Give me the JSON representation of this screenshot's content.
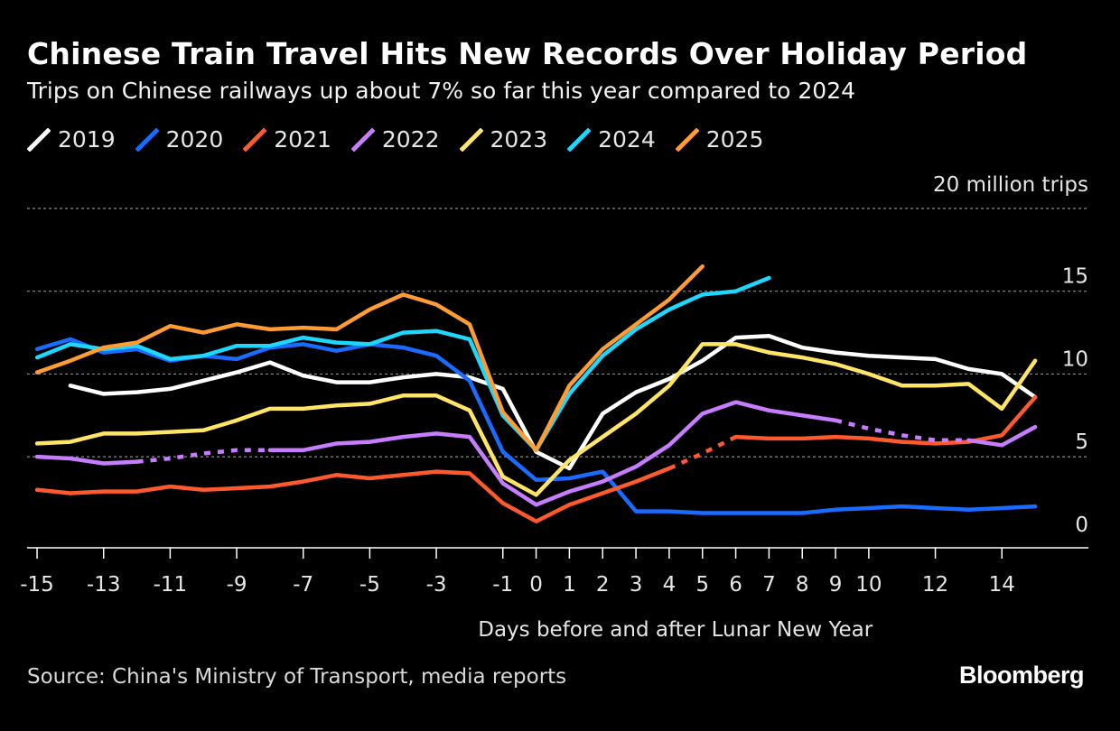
{
  "brand": "Bloomberg",
  "source": "Source: China's Ministry of Transport, media reports",
  "chart_data": {
    "type": "line",
    "title": "Chinese Train Travel Hits New Records Over Holiday Period",
    "subtitle": "Trips on Chinese railways up about 7% so far this year compared to 2024",
    "xlabel": "Days before and after Lunar New Year",
    "ylabel": "million trips",
    "y_unit_label": "20 million trips",
    "ylim": [
      -0.5,
      20
    ],
    "xlim": [
      -15.3,
      16.6
    ],
    "y_ticks": [
      0,
      5,
      10,
      15
    ],
    "y_tick_labels": [
      "0",
      "5",
      "10",
      "15"
    ],
    "x_ticks": [
      -15,
      -13,
      -11,
      -9,
      -7,
      -5,
      -3,
      -1,
      0,
      1,
      2,
      3,
      4,
      5,
      6,
      7,
      8,
      9,
      10,
      12,
      14
    ],
    "x_tick_labels": [
      "-15",
      "-13",
      "-11",
      "-9",
      "-7",
      "-5",
      "-3",
      "-1",
      "0",
      "1",
      "2",
      "3",
      "4",
      "5",
      "6",
      "7",
      "8",
      "9",
      "10",
      "12",
      "14"
    ],
    "series": [
      {
        "name": "2019",
        "color": "#ffffff",
        "points": [
          [
            -14,
            9.3
          ],
          [
            -13,
            8.8
          ],
          [
            -12,
            8.9
          ],
          [
            -11,
            9.1
          ],
          [
            -10,
            9.6
          ],
          [
            -9,
            10.1
          ],
          [
            -8,
            10.7
          ],
          [
            -7,
            9.9
          ],
          [
            -6,
            9.5
          ],
          [
            -5,
            9.5
          ],
          [
            -4,
            9.8
          ],
          [
            -3,
            10.0
          ],
          [
            -2,
            9.8
          ],
          [
            -1,
            9.1
          ],
          [
            0,
            5.3
          ],
          [
            1,
            4.3
          ],
          [
            2,
            7.6
          ],
          [
            3,
            8.9
          ],
          [
            4,
            9.7
          ],
          [
            5,
            10.8
          ],
          [
            6,
            12.2
          ],
          [
            7,
            12.3
          ],
          [
            8,
            11.6
          ],
          [
            9,
            11.3
          ],
          [
            10,
            11.1
          ],
          [
            11,
            11.0
          ],
          [
            12,
            10.9
          ],
          [
            13,
            10.3
          ],
          [
            14,
            10.0
          ],
          [
            15,
            8.6
          ]
        ]
      },
      {
        "name": "2020",
        "color": "#1a6bff",
        "points": [
          [
            -15,
            11.5
          ],
          [
            -14,
            12.1
          ],
          [
            -13,
            11.3
          ],
          [
            -12,
            11.5
          ],
          [
            -11,
            10.8
          ],
          [
            -10,
            11.1
          ],
          [
            -9,
            10.9
          ],
          [
            -8,
            11.6
          ],
          [
            -7,
            11.8
          ],
          [
            -6,
            11.4
          ],
          [
            -5,
            11.8
          ],
          [
            -4,
            11.6
          ],
          [
            -3,
            11.1
          ],
          [
            -2,
            9.6
          ],
          [
            -1,
            5.3
          ],
          [
            0,
            3.6
          ],
          [
            1,
            3.7
          ],
          [
            2,
            4.1
          ],
          [
            3,
            1.7
          ],
          [
            4,
            1.7
          ],
          [
            5,
            1.6
          ],
          [
            6,
            1.6
          ],
          [
            7,
            1.6
          ],
          [
            8,
            1.6
          ],
          [
            9,
            1.8
          ],
          [
            10,
            1.9
          ],
          [
            11,
            2.0
          ],
          [
            12,
            1.9
          ],
          [
            13,
            1.8
          ],
          [
            14,
            1.9
          ],
          [
            15,
            2.0
          ]
        ]
      },
      {
        "name": "2021",
        "color": "#ff5a2e",
        "points": [
          [
            -15,
            3.0
          ],
          [
            -14,
            2.8
          ],
          [
            -13,
            2.9
          ],
          [
            -12,
            2.9
          ],
          [
            -11,
            3.2
          ],
          [
            -10,
            3.0
          ],
          [
            -9,
            3.1
          ],
          [
            -8,
            3.2
          ],
          [
            -7,
            3.5
          ],
          [
            -6,
            3.9
          ],
          [
            -5,
            3.7
          ],
          [
            -4,
            3.9
          ],
          [
            -3,
            4.1
          ],
          [
            -2,
            4.0
          ],
          [
            -1,
            2.2
          ],
          [
            0,
            1.1
          ],
          [
            1,
            2.1
          ],
          [
            2,
            2.8
          ],
          [
            3,
            3.5
          ],
          [
            4,
            4.3
          ],
          [
            5,
            5.2,
            "d"
          ],
          [
            6,
            6.2
          ],
          [
            7,
            6.1
          ],
          [
            8,
            6.1
          ],
          [
            9,
            6.2
          ],
          [
            10,
            6.1
          ],
          [
            11,
            5.9
          ],
          [
            12,
            5.8
          ],
          [
            13,
            5.9
          ],
          [
            14,
            6.3
          ],
          [
            15,
            8.6
          ]
        ]
      },
      {
        "name": "2022",
        "color": "#c77dff",
        "points": [
          [
            -15,
            5.0
          ],
          [
            -14,
            4.9
          ],
          [
            -13,
            4.6
          ],
          [
            -12,
            4.7
          ],
          [
            -11,
            4.9,
            "d"
          ],
          [
            -10,
            5.2,
            "d"
          ],
          [
            -9,
            5.4,
            "d"
          ],
          [
            -8,
            5.4
          ],
          [
            -7,
            5.4
          ],
          [
            -6,
            5.8
          ],
          [
            -5,
            5.9
          ],
          [
            -4,
            6.2
          ],
          [
            -3,
            6.4
          ],
          [
            -2,
            6.2
          ],
          [
            -1,
            3.4
          ],
          [
            0,
            2.1
          ],
          [
            1,
            2.9
          ],
          [
            2,
            3.5
          ],
          [
            3,
            4.4
          ],
          [
            4,
            5.7
          ],
          [
            5,
            7.6
          ],
          [
            6,
            8.3
          ],
          [
            7,
            7.8
          ],
          [
            8,
            7.5
          ],
          [
            9,
            7.2
          ],
          [
            10,
            6.7,
            "d"
          ],
          [
            11,
            6.3,
            "d"
          ],
          [
            12,
            6.0,
            "d"
          ],
          [
            13,
            6.0
          ],
          [
            14,
            5.7
          ],
          [
            15,
            6.8
          ]
        ]
      },
      {
        "name": "2023",
        "color": "#ffe566",
        "points": [
          [
            -15,
            5.8
          ],
          [
            -14,
            5.9
          ],
          [
            -13,
            6.4
          ],
          [
            -12,
            6.4
          ],
          [
            -11,
            6.5
          ],
          [
            -10,
            6.6
          ],
          [
            -9,
            7.2
          ],
          [
            -8,
            7.9
          ],
          [
            -7,
            7.9
          ],
          [
            -6,
            8.1
          ],
          [
            -5,
            8.2
          ],
          [
            -4,
            8.7
          ],
          [
            -3,
            8.7
          ],
          [
            -2,
            7.8
          ],
          [
            -1,
            3.8
          ],
          [
            0,
            2.7
          ],
          [
            1,
            4.8
          ],
          [
            2,
            6.2
          ],
          [
            3,
            7.6
          ],
          [
            4,
            9.3
          ],
          [
            5,
            11.8
          ],
          [
            6,
            11.8
          ],
          [
            7,
            11.3
          ],
          [
            8,
            11.0
          ],
          [
            9,
            10.6
          ],
          [
            10,
            10.0
          ],
          [
            11,
            9.3
          ],
          [
            12,
            9.3
          ],
          [
            13,
            9.4
          ],
          [
            14,
            7.9
          ],
          [
            15,
            10.8
          ]
        ]
      },
      {
        "name": "2024",
        "color": "#1fd6ff",
        "points": [
          [
            -15,
            11.0
          ],
          [
            -14,
            11.8
          ],
          [
            -13,
            11.5
          ],
          [
            -12,
            11.7
          ],
          [
            -11,
            10.9
          ],
          [
            -10,
            11.1
          ],
          [
            -9,
            11.7
          ],
          [
            -8,
            11.7
          ],
          [
            -7,
            12.2
          ],
          [
            -6,
            11.9
          ],
          [
            -5,
            11.8
          ],
          [
            -4,
            12.5
          ],
          [
            -3,
            12.6
          ],
          [
            -2,
            12.1
          ],
          [
            -1,
            7.5
          ],
          [
            0,
            5.4
          ],
          [
            1,
            8.8
          ],
          [
            2,
            11.1
          ],
          [
            3,
            12.7
          ],
          [
            4,
            13.9
          ],
          [
            5,
            14.8
          ],
          [
            6,
            15.0
          ],
          [
            7,
            15.8
          ]
        ]
      },
      {
        "name": "2025",
        "color": "#ff9c33",
        "points": [
          [
            -15,
            10.1
          ],
          [
            -14,
            10.8
          ],
          [
            -13,
            11.6
          ],
          [
            -12,
            11.9
          ],
          [
            -11,
            12.9
          ],
          [
            -10,
            12.5
          ],
          [
            -9,
            13.0
          ],
          [
            -8,
            12.7
          ],
          [
            -7,
            12.8
          ],
          [
            -6,
            12.7
          ],
          [
            -5,
            13.9
          ],
          [
            -4,
            14.8
          ],
          [
            -3,
            14.2
          ],
          [
            -2,
            13.0
          ],
          [
            -1,
            7.7
          ],
          [
            0,
            5.4
          ],
          [
            1,
            9.3
          ],
          [
            2,
            11.5
          ],
          [
            3,
            13.0
          ],
          [
            4,
            14.5
          ],
          [
            5,
            16.5
          ]
        ]
      }
    ]
  }
}
